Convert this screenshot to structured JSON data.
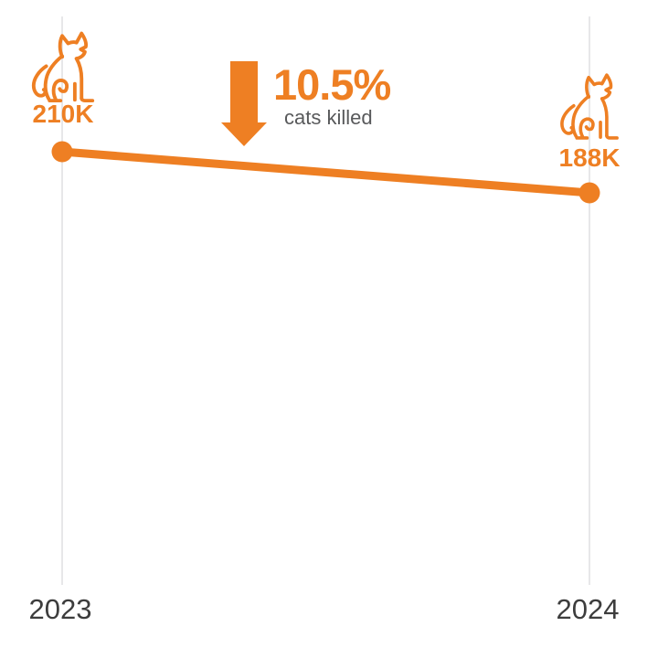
{
  "page": {
    "background": "#FFFFFF",
    "description": "Infographic line chart of cats killed, 2023 vs 2024"
  },
  "colors": {
    "accent_orange": "#EE7F23",
    "caption_gray": "#58595B",
    "axis_label_gray": "#3D3D3D",
    "gridline_gray": "#E7E7E9"
  },
  "chart_data": {
    "type": "line",
    "title": "",
    "x": [
      "2023",
      "2024"
    ],
    "series": [
      {
        "name": "cats killed",
        "values": [
          210000,
          188000
        ]
      }
    ],
    "point_labels": [
      "210K",
      "188K"
    ],
    "annotation": {
      "change": "10.5%",
      "caption": "cats killed",
      "direction": "down"
    },
    "grid": "vertical-gridlines-only",
    "legend": "none",
    "xlabel": "",
    "ylabel": ""
  },
  "labels": {
    "value_2023": "210K",
    "value_2024": "188K",
    "percent_change": "10.5%",
    "caption": "cats killed",
    "axis_2023": "2023",
    "axis_2024": "2024"
  },
  "icons": {
    "cat": "sitting-cat-outline",
    "arrow": "down-arrow-solid"
  }
}
